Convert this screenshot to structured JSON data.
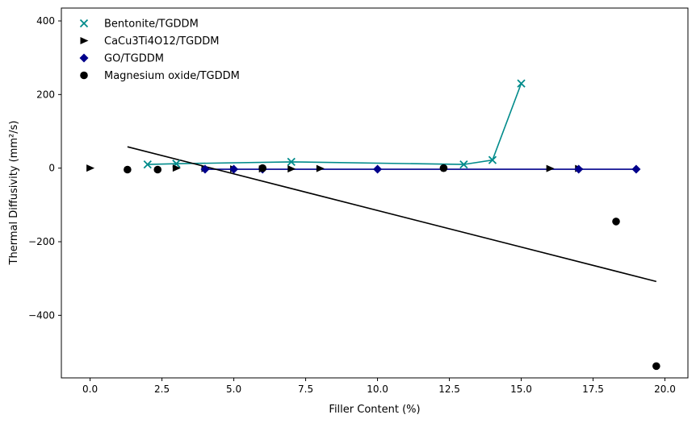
{
  "chart_data": {
    "type": "scatter",
    "xlabel": "Filler Content (%)",
    "ylabel": "Thermal Diffusivity (mm²/s)",
    "xlim": [
      -1.0,
      20.8
    ],
    "ylim": [
      -570,
      435
    ],
    "x_ticks": [
      0.0,
      2.5,
      5.0,
      7.5,
      10.0,
      12.5,
      15.0,
      17.5,
      20.0
    ],
    "x_tick_labels": [
      "0.0",
      "2.5",
      "5.0",
      "7.5",
      "10.0",
      "12.5",
      "15.0",
      "17.5",
      "20.0"
    ],
    "y_ticks": [
      -400,
      -200,
      0,
      200,
      400
    ],
    "y_tick_labels": [
      "−400",
      "−200",
      "0",
      "200",
      "400"
    ],
    "grid": false,
    "legend_position": "top-left",
    "series": [
      {
        "name": "Bentonite/TGDDM",
        "marker": "x",
        "color": "#008b8b",
        "connected": true,
        "x": [
          2,
          3,
          7,
          13,
          14,
          15
        ],
        "y": [
          10,
          12,
          17,
          10,
          22,
          230
        ]
      },
      {
        "name": "CaCu3Ti4O12/TGDDM",
        "marker": "triangle-right",
        "color": "#000000",
        "connected": false,
        "x": [
          0,
          3,
          4,
          5,
          6,
          7,
          8,
          16,
          17
        ],
        "y": [
          0,
          0,
          -1,
          -2,
          -2,
          -2,
          -1,
          -1,
          -1
        ]
      },
      {
        "name": "GO/TGDDM",
        "marker": "diamond",
        "color": "#00008b",
        "connected": true,
        "x": [
          4,
          5,
          6,
          10,
          17,
          19
        ],
        "y": [
          -3,
          -3,
          -3,
          -3,
          -3,
          -3
        ]
      },
      {
        "name": "Magnesium oxide/TGDDM",
        "marker": "circle",
        "color": "#000000",
        "connected": false,
        "x": [
          1.3,
          2.35,
          6,
          12.3,
          18.3,
          19.7
        ],
        "y": [
          -4,
          -4,
          0,
          0,
          -145,
          -538
        ]
      }
    ],
    "trend_line": {
      "color": "#000000",
      "x": [
        1.3,
        19.7
      ],
      "y": [
        58,
        -308
      ]
    }
  }
}
